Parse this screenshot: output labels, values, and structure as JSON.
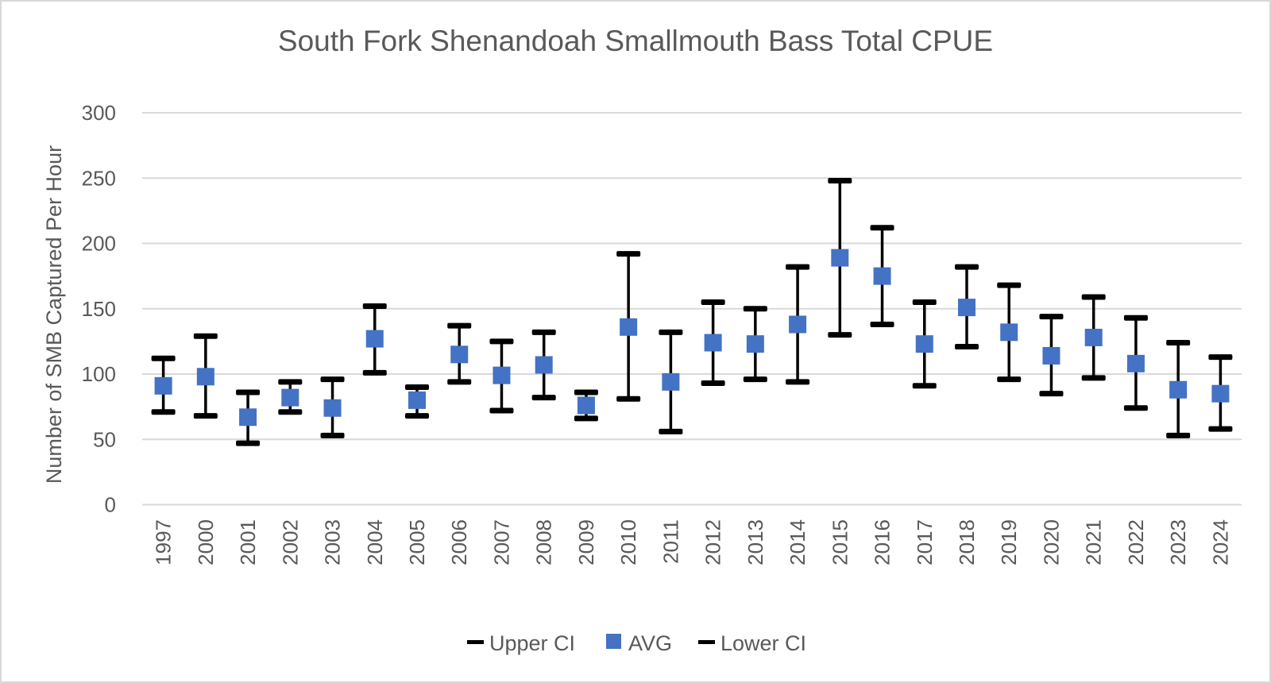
{
  "chart_data": {
    "type": "scatter",
    "title": "South Fork Shenandoah Smallmouth Bass Total CPUE",
    "xlabel": "",
    "ylabel": "Number of SMB Captured Per Hour",
    "ylim": [
      0,
      300
    ],
    "yticks": [
      0,
      50,
      100,
      150,
      200,
      250,
      300
    ],
    "ytick_labels": [
      "0",
      "50",
      "100",
      "150",
      "200",
      "250",
      "300"
    ],
    "grid": true,
    "legend_position": "bottom",
    "categories": [
      "1997",
      "2000",
      "2001",
      "2002",
      "2003",
      "2004",
      "2005",
      "2006",
      "2007",
      "2008",
      "2009",
      "2010",
      "2011",
      "2012",
      "2013",
      "2014",
      "2015",
      "2016",
      "2017",
      "2018",
      "2019",
      "2020",
      "2021",
      "2022",
      "2023",
      "2024"
    ],
    "series": [
      {
        "name": "Upper CI",
        "marker": "dash",
        "color": "#000000",
        "values": [
          112,
          129,
          86,
          94,
          96,
          152,
          90,
          137,
          125,
          132,
          86,
          192,
          132,
          155,
          150,
          182,
          248,
          212,
          155,
          182,
          168,
          144,
          159,
          143,
          124,
          113
        ]
      },
      {
        "name": "AVG",
        "marker": "square",
        "color": "#4472c4",
        "values": [
          91,
          98,
          67,
          82,
          74,
          127,
          80,
          115,
          99,
          107,
          76,
          136,
          94,
          124,
          123,
          138,
          189,
          175,
          123,
          151,
          132,
          114,
          128,
          108,
          88,
          85
        ]
      },
      {
        "name": "Lower CI",
        "marker": "dash",
        "color": "#000000",
        "values": [
          71,
          68,
          47,
          71,
          53,
          101,
          68,
          94,
          72,
          82,
          66,
          81,
          56,
          93,
          96,
          94,
          130,
          138,
          91,
          121,
          96,
          85,
          97,
          74,
          53,
          58
        ]
      }
    ],
    "error_bars": "vertical line from Lower CI to Upper CI"
  }
}
